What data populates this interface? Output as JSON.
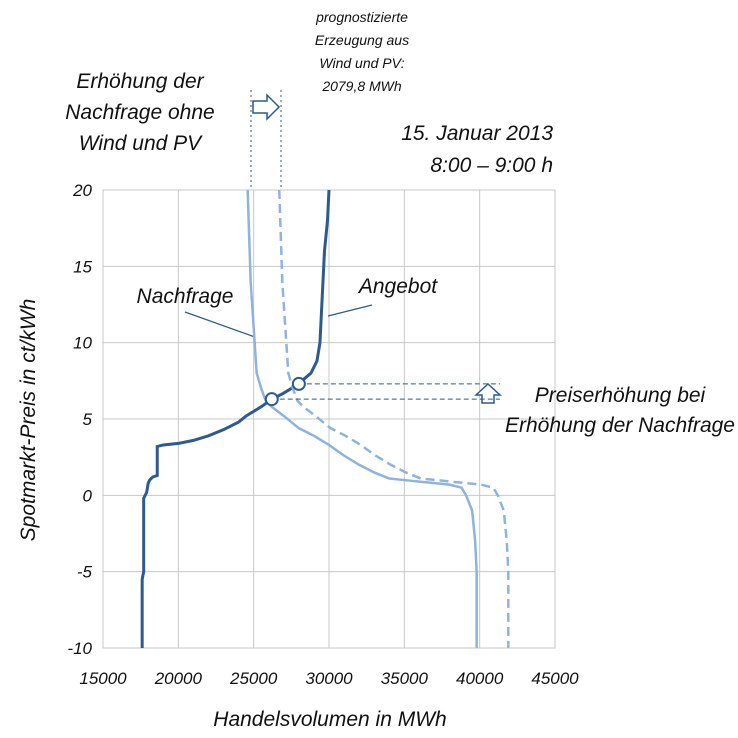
{
  "chart_data": {
    "type": "line",
    "title": "15. Januar 2013",
    "subtitle": "8:00 – 9:00 h",
    "xlabel": "Handelsvolumen in MWh",
    "ylabel": "Spotmarkt-Preis  in ct/kWh",
    "xlim": [
      15000,
      45000
    ],
    "ylim": [
      -10,
      20
    ],
    "xticks": [
      15000,
      20000,
      25000,
      30000,
      35000,
      40000,
      45000
    ],
    "yticks": [
      -10,
      -5,
      0,
      5,
      10,
      15,
      20
    ],
    "grid": true,
    "series": [
      {
        "name": "Angebot",
        "color": "#2e5a8c",
        "dashed": false,
        "x": [
          17600,
          17600,
          17700,
          17700,
          17900,
          18000,
          18100,
          18300,
          18600,
          18600,
          19000,
          20000,
          21000,
          22000,
          23000,
          24000,
          24500,
          25000,
          25500,
          26200,
          27000,
          27500,
          28200,
          28800,
          29200,
          29400,
          29500,
          29600,
          29700,
          29900,
          30000
        ],
        "values": [
          -10,
          -5.5,
          -5,
          -0.2,
          0.2,
          0.8,
          1,
          1.2,
          1.3,
          3.2,
          3.3,
          3.4,
          3.6,
          3.9,
          4.3,
          4.8,
          5.2,
          5.5,
          5.8,
          6.3,
          6.7,
          7,
          7.5,
          8,
          8.8,
          10,
          12,
          14,
          16,
          18,
          20
        ]
      },
      {
        "name": "Nachfrage",
        "color": "#8fb3dd",
        "dashed": false,
        "x": [
          24600,
          24700,
          24800,
          25000,
          25200,
          25500,
          25800,
          26200,
          27000,
          28000,
          29000,
          30000,
          31000,
          32000,
          33000,
          34000,
          35000,
          36000,
          37000,
          38000,
          38800,
          39100,
          39500,
          39700,
          39800,
          39800
        ],
        "values": [
          20,
          17,
          14,
          11,
          8,
          7,
          6.2,
          5.8,
          5.2,
          4.4,
          3.9,
          3.3,
          2.6,
          2,
          1.5,
          1.1,
          1,
          0.9,
          0.8,
          0.7,
          0.5,
          0,
          -1,
          -3,
          -5,
          -10
        ]
      },
      {
        "color": "#8fb3dd",
        "dashed": true,
        "x": [
          26700,
          26800,
          26900,
          27100,
          27300,
          27600,
          27900,
          28300,
          29100,
          30100,
          31100,
          32100,
          33100,
          34100,
          35100,
          36100,
          37100,
          38100,
          39100,
          40100,
          40900,
          41200,
          41600,
          41800,
          41900,
          41900
        ],
        "values": [
          20,
          17,
          14,
          11,
          8,
          7,
          6.2,
          5.8,
          5.2,
          4.4,
          3.9,
          3.3,
          2.6,
          2,
          1.5,
          1.1,
          1,
          0.9,
          0.8,
          0.7,
          0.5,
          0,
          -1,
          -3,
          -5,
          -10
        ]
      }
    ],
    "markers": [
      {
        "x": 26200,
        "y": 6.3
      },
      {
        "x": 28000,
        "y": 7.3
      }
    ],
    "annotations": {
      "forecast": [
        "prognostizierte",
        "Erzeugung aus",
        "Wind und PV:",
        "2079,8 MWh"
      ],
      "increase": [
        "Erhöhung der",
        "Nachfrage ohne",
        "Wind und PV"
      ],
      "price": [
        "Preiserhöhung bei",
        "Erhöhung der Nachfrage"
      ]
    }
  }
}
